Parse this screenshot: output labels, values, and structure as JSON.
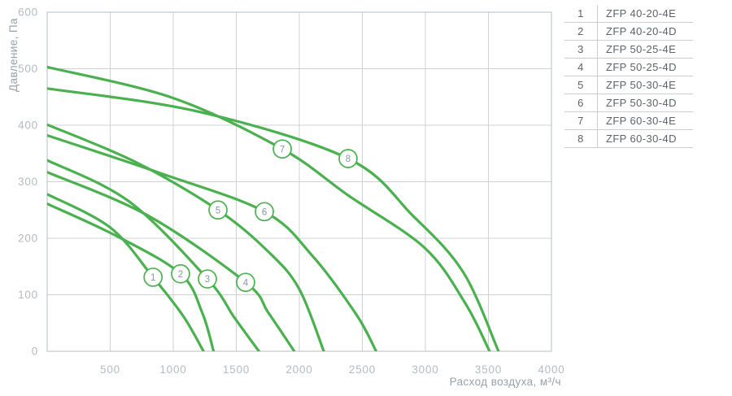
{
  "page": {
    "background": "#ffffff"
  },
  "chart_data": {
    "type": "line",
    "title": "",
    "xlabel": "Расход воздуха, м³/ч",
    "ylabel": "Давление, Па",
    "xlim": [
      0,
      4000
    ],
    "ylim": [
      0,
      600
    ],
    "x_ticks": [
      500,
      1000,
      1500,
      2000,
      2500,
      3000,
      3500,
      4000
    ],
    "y_ticks": [
      0,
      100,
      200,
      300,
      400,
      500,
      600
    ],
    "grid": true,
    "legend_position": "top-right-table",
    "series": [
      {
        "num": "1",
        "name": "ZFP 40-20-4E",
        "points": [
          [
            0,
            278
          ],
          [
            500,
            219
          ],
          [
            840,
            131
          ],
          [
            1080,
            62
          ],
          [
            1240,
            0
          ]
        ],
        "label_at": [
          840,
          131
        ]
      },
      {
        "num": "2",
        "name": "ZFP 40-20-4D",
        "points": [
          [
            0,
            261
          ],
          [
            550,
            204
          ],
          [
            1058,
            137
          ],
          [
            1230,
            68
          ],
          [
            1320,
            0
          ]
        ],
        "label_at": [
          1058,
          137
        ]
      },
      {
        "num": "3",
        "name": "ZFP 50-25-4E",
        "points": [
          [
            0,
            338
          ],
          [
            650,
            265
          ],
          [
            1271,
            128
          ],
          [
            1484,
            60
          ],
          [
            1680,
            0
          ]
        ],
        "label_at": [
          1271,
          128
        ]
      },
      {
        "num": "4",
        "name": "ZFP 50-25-4D",
        "points": [
          [
            0,
            317
          ],
          [
            800,
            240
          ],
          [
            1574,
            122
          ],
          [
            1755,
            68
          ],
          [
            1960,
            0
          ]
        ],
        "label_at": [
          1574,
          122
        ]
      },
      {
        "num": "5",
        "name": "ZFP 50-30-4E",
        "points": [
          [
            0,
            401
          ],
          [
            700,
            335
          ],
          [
            1355,
            250
          ],
          [
            1760,
            175
          ],
          [
            2000,
            110
          ],
          [
            2194,
            0
          ]
        ],
        "label_at": [
          1355,
          250
        ]
      },
      {
        "num": "6",
        "name": "ZFP 50-30-4D",
        "points": [
          [
            0,
            382
          ],
          [
            900,
            315
          ],
          [
            1723,
            247
          ],
          [
            2100,
            170
          ],
          [
            2452,
            65
          ],
          [
            2610,
            0
          ]
        ],
        "label_at": [
          1723,
          247
        ]
      },
      {
        "num": "7",
        "name": "ZFP 60-30-4E",
        "points": [
          [
            0,
            503
          ],
          [
            1000,
            448
          ],
          [
            1865,
            358
          ],
          [
            2387,
            276
          ],
          [
            2994,
            183
          ],
          [
            3316,
            85
          ],
          [
            3510,
            0
          ]
        ],
        "label_at": [
          1865,
          358
        ]
      },
      {
        "num": "8",
        "name": "ZFP 60-30-4D",
        "points": [
          [
            0,
            465
          ],
          [
            1200,
            424
          ],
          [
            2387,
            341
          ],
          [
            2900,
            240
          ],
          [
            3300,
            140
          ],
          [
            3580,
            0
          ]
        ],
        "label_at": [
          2387,
          341
        ]
      }
    ]
  },
  "colors": {
    "curve": "#4bb04f",
    "grid": "#cdd1d4",
    "plot_border": "#c3c8cb",
    "tick_label": "#b4bbc1",
    "axis_title": "#97a1a9",
    "legend_text": "#5d6369",
    "legend_line": "#c9cdd1",
    "marker_number": "#8997a2",
    "marker_fill": "#ffffff"
  }
}
